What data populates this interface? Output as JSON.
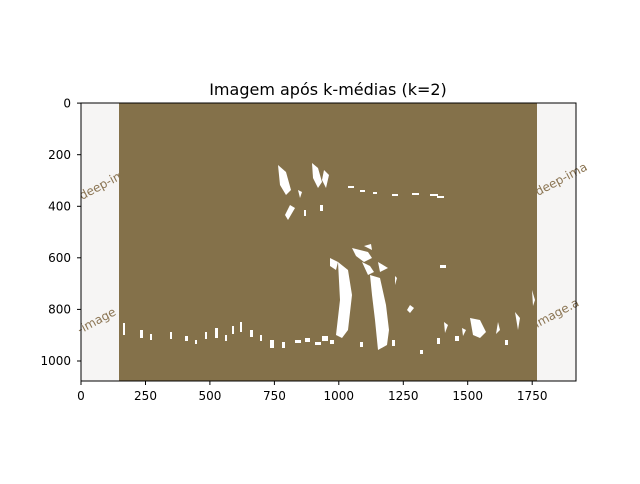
{
  "title": "Imagem após k-médias (k=2)",
  "x_axis": {
    "ticks": [
      "0",
      "250",
      "500",
      "750",
      "1000",
      "1250",
      "1500",
      "1750"
    ]
  },
  "y_axis": {
    "ticks": [
      "0",
      "200",
      "400",
      "600",
      "800",
      "1000"
    ]
  },
  "watermark": [
    "deep-im",
    "deep-ima",
    "-image",
    "image.a"
  ],
  "colors": {
    "cluster_dark": "#84714a",
    "cluster_light": "#ffffff",
    "padding": "#f6f5f4",
    "watermark": "#8a7452"
  }
}
